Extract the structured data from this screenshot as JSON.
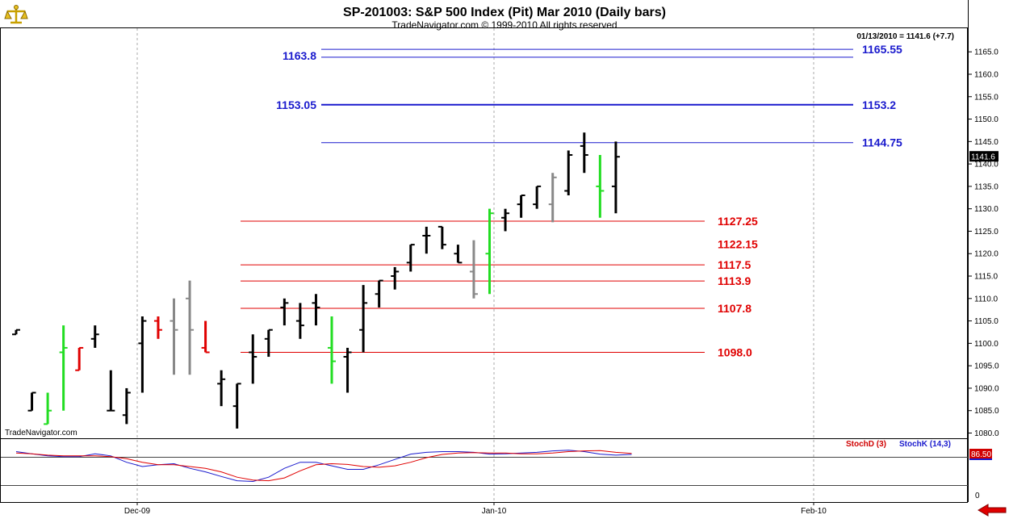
{
  "header": {
    "title": "SP-201003:  S&P 500 Index (Pit) Mar 2010  (Daily bars)",
    "subtitle": "TradeNavigator.com © 1999-2010 All rights reserved",
    "readout": "01/13/2010 = 1141.6 (+7.7)",
    "watermark": "TradeNavigator.com",
    "last_price_tag": "1141.6"
  },
  "colors": {
    "up_bar": "#22dd22",
    "down_bar": "#e00000",
    "gray_bar": "#888888",
    "neutral_bar": "#000000",
    "blue_level": "#1a1acd",
    "red_level": "#e00000",
    "grid": "#aaaaaa"
  },
  "icons": {
    "logo": "scale-logo-icon",
    "scroll": "scroll-left-arrow-icon"
  },
  "chart_data": {
    "type": "ohlc",
    "y_range": [
      1077,
      1170
    ],
    "y_ticks": [
      "1165.0",
      "1160.0",
      "1155.0",
      "1150.0",
      "1145.0",
      "1140.0",
      "1135.0",
      "1130.0",
      "1125.0",
      "1120.0",
      "1115.0",
      "1110.0",
      "1105.0",
      "1100.0",
      "1095.0",
      "1090.0",
      "1085.0",
      "1080.0"
    ],
    "x_labels": [
      "Dec-09",
      "Jan-10",
      "Feb-10"
    ],
    "bars": [
      {
        "o": 1102,
        "h": 1103,
        "l": 1102,
        "c": 1103,
        "color": "black"
      },
      {
        "o": 1085,
        "h": 1089,
        "l": 1085,
        "c": 1089,
        "color": "black"
      },
      {
        "o": 1082,
        "h": 1089,
        "l": 1082,
        "c": 1085,
        "color": "green"
      },
      {
        "o": 1098,
        "h": 1104,
        "l": 1085,
        "c": 1099,
        "color": "green"
      },
      {
        "o": 1094,
        "h": 1099,
        "l": 1094,
        "c": 1099,
        "color": "red"
      },
      {
        "o": 1101,
        "h": 1104,
        "l": 1099,
        "c": 1102,
        "color": "black"
      },
      {
        "o": 1085,
        "h": 1094,
        "l": 1085,
        "c": 1085,
        "color": "black"
      },
      {
        "o": 1084,
        "h": 1090,
        "l": 1082,
        "c": 1089,
        "color": "black"
      },
      {
        "o": 1100,
        "h": 1106,
        "l": 1089,
        "c": 1105,
        "color": "black"
      },
      {
        "o": 1105,
        "h": 1106,
        "l": 1101,
        "c": 1103,
        "color": "red"
      },
      {
        "o": 1105,
        "h": 1110,
        "l": 1093,
        "c": 1103,
        "color": "gray"
      },
      {
        "o": 1110,
        "h": 1114,
        "l": 1093,
        "c": 1103,
        "color": "gray"
      },
      {
        "o": 1099,
        "h": 1105,
        "l": 1098,
        "c": 1098,
        "color": "red"
      },
      {
        "o": 1091,
        "h": 1094,
        "l": 1086,
        "c": 1092,
        "color": "black"
      },
      {
        "o": 1086,
        "h": 1091,
        "l": 1081,
        "c": 1091,
        "color": "black"
      },
      {
        "o": 1098,
        "h": 1102,
        "l": 1091,
        "c": 1097,
        "color": "black"
      },
      {
        "o": 1101,
        "h": 1103,
        "l": 1097,
        "c": 1103,
        "color": "black"
      },
      {
        "o": 1108,
        "h": 1110,
        "l": 1104,
        "c": 1109,
        "color": "black"
      },
      {
        "o": 1105,
        "h": 1109,
        "l": 1101,
        "c": 1104,
        "color": "black"
      },
      {
        "o": 1109,
        "h": 1111,
        "l": 1104,
        "c": 1108,
        "color": "black"
      },
      {
        "o": 1099,
        "h": 1106,
        "l": 1091,
        "c": 1096,
        "color": "green"
      },
      {
        "o": 1097,
        "h": 1099,
        "l": 1089,
        "c": 1098,
        "color": "black"
      },
      {
        "o": 1103,
        "h": 1113,
        "l": 1098,
        "c": 1109,
        "color": "black"
      },
      {
        "o": 1111,
        "h": 1114,
        "l": 1108,
        "c": 1114,
        "color": "black"
      },
      {
        "o": 1115,
        "h": 1117,
        "l": 1112,
        "c": 1116,
        "color": "black"
      },
      {
        "o": 1118,
        "h": 1122,
        "l": 1116,
        "c": 1122,
        "color": "black"
      },
      {
        "o": 1124,
        "h": 1126,
        "l": 1120,
        "c": 1124,
        "color": "black"
      },
      {
        "o": 1126,
        "h": 1126,
        "l": 1121,
        "c": 1122,
        "color": "black"
      },
      {
        "o": 1120,
        "h": 1122,
        "l": 1118,
        "c": 1118,
        "color": "black"
      },
      {
        "o": 1116,
        "h": 1123,
        "l": 1110,
        "c": 1111,
        "color": "gray"
      },
      {
        "o": 1120,
        "h": 1130,
        "l": 1111,
        "c": 1129,
        "color": "green"
      },
      {
        "o": 1128,
        "h": 1130,
        "l": 1125,
        "c": 1129,
        "color": "black"
      },
      {
        "o": 1131,
        "h": 1133,
        "l": 1128,
        "c": 1133,
        "color": "black"
      },
      {
        "o": 1131,
        "h": 1135,
        "l": 1130,
        "c": 1135,
        "color": "black"
      },
      {
        "o": 1131,
        "h": 1138,
        "l": 1127,
        "c": 1137,
        "color": "gray"
      },
      {
        "o": 1134,
        "h": 1143,
        "l": 1133,
        "c": 1142,
        "color": "black"
      },
      {
        "o": 1144,
        "h": 1147,
        "l": 1138,
        "c": 1142,
        "color": "black"
      },
      {
        "o": 1135,
        "h": 1142,
        "l": 1128,
        "c": 1134,
        "color": "green"
      },
      {
        "o": 1135,
        "h": 1145,
        "l": 1129,
        "c": 1141.6,
        "color": "black"
      }
    ],
    "levels_blue": [
      {
        "value": 1165.55,
        "label": "1165.55",
        "left_label": "1163.8"
      },
      {
        "value": 1163.8,
        "label": "",
        "left_label": ""
      },
      {
        "value": 1153.2,
        "label": "1153.2",
        "left_label": "1153.05"
      },
      {
        "value": 1144.75,
        "label": "1144.75",
        "left_label": ""
      }
    ],
    "levels_red": [
      {
        "value": 1127.25,
        "label": "1127.25"
      },
      {
        "value": 1122.15,
        "label": "1122.15",
        "no_line": true
      },
      {
        "value": 1117.5,
        "label": "1117.5"
      },
      {
        "value": 1113.9,
        "label": "1113.9"
      },
      {
        "value": 1107.8,
        "label": "1107.8"
      },
      {
        "value": 1098.0,
        "label": "1098.0"
      }
    ],
    "stochastic": {
      "label_d": "StochD (3)",
      "label_k": "StochK (14,3)",
      "level_tag": "86.50",
      "zero_label": "0",
      "d_values": [
        88,
        86,
        82,
        80,
        80,
        80,
        78,
        72,
        62,
        55,
        55,
        50,
        45,
        35,
        20,
        12,
        10,
        18,
        38,
        55,
        58,
        56,
        50,
        48,
        52,
        62,
        75,
        84,
        88,
        89,
        88,
        88,
        86,
        86,
        88,
        92,
        94,
        95,
        90,
        87
      ],
      "k_values": [
        92,
        86,
        80,
        78,
        78,
        86,
        80,
        62,
        50,
        55,
        58,
        45,
        35,
        22,
        10,
        8,
        20,
        45,
        62,
        62,
        52,
        42,
        42,
        55,
        70,
        85,
        90,
        92,
        92,
        90,
        85,
        86,
        88,
        90,
        94,
        96,
        92,
        85,
        82,
        84
      ]
    }
  }
}
